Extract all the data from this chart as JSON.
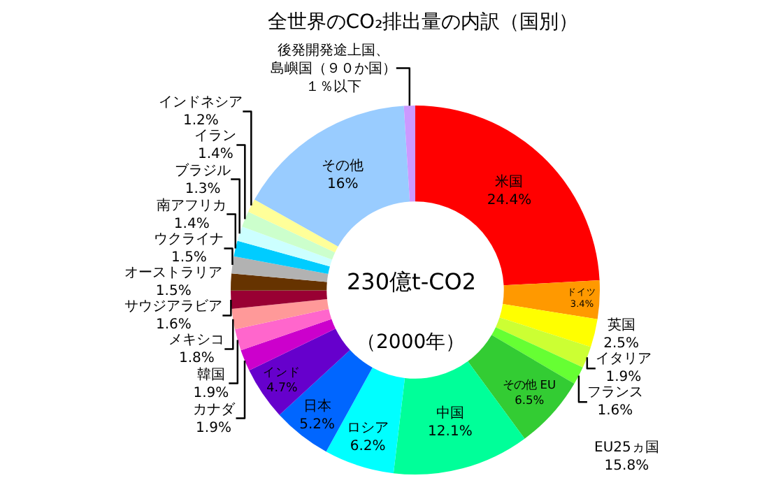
{
  "chart_data": {
    "type": "donut",
    "title": "全世界のCO₂排出量の内訳（国別）",
    "categories": [
      "米国",
      "ドイツ",
      "英国",
      "イタリア",
      "フランス",
      "その他 EU",
      "中国",
      "ロシア",
      "日本",
      "インド",
      "カナダ",
      "韓国",
      "メキシコ",
      "サウジアラビア",
      "オーストラリア",
      "ウクライナ",
      "南アフリカ",
      "ブラジル",
      "イラン",
      "インドネシア",
      "その他",
      "後発開発途上国、島嶼国（９０か国）"
    ],
    "values": [
      24.4,
      3.4,
      2.5,
      1.9,
      1.6,
      6.5,
      12.1,
      6.2,
      5.2,
      4.7,
      1.9,
      1.9,
      1.8,
      1.6,
      1.5,
      1.5,
      1.4,
      1.3,
      1.4,
      1.2,
      16,
      1
    ],
    "value_labels": [
      "24.4%",
      "3.4%",
      "2.5%",
      "1.9%",
      "1.6%",
      "6.5%",
      "12.1%",
      "6.2%",
      "5.2%",
      "4.7%",
      "1.9%",
      "1.9%",
      "1.8%",
      "1.6%",
      "1.5%",
      "1.5%",
      "1.4%",
      "1.3%",
      "1.4%",
      "1.2%",
      "16%",
      "１％以下"
    ],
    "colors": [
      "#ff0000",
      "#ff9900",
      "#ffff00",
      "#ccff33",
      "#66ff33",
      "#33cc33",
      "#00ff99",
      "#00ffff",
      "#0066ff",
      "#6600cc",
      "#cc00cc",
      "#ff66cc",
      "#ff9999",
      "#990033",
      "#663300",
      "#b2b2b2",
      "#00ccff",
      "#ccffff",
      "#ccffcc",
      "#ffff99",
      "#99ccff",
      "#cc99ff"
    ],
    "annotations": [
      "230億t-CO2",
      "（2000年）",
      "EU25ヵ国\n15.8%"
    ]
  }
}
